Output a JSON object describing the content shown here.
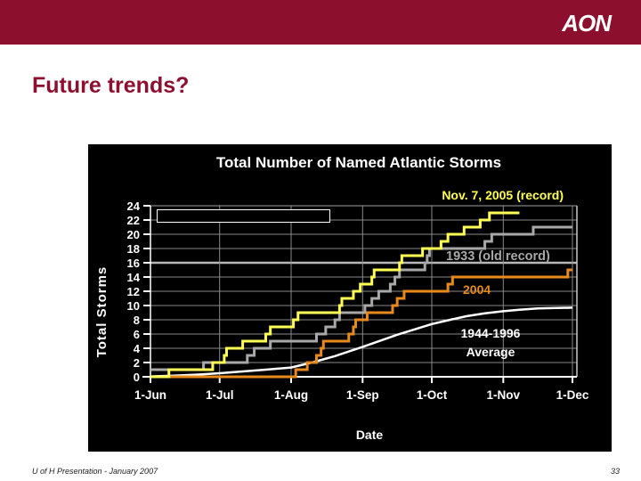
{
  "header": {
    "logo_text": "AON",
    "title": "Future trends?"
  },
  "footer": {
    "left": "U of H Presentation - January 2007",
    "page": "33"
  },
  "colors": {
    "brand_bar": "#8C0F2D",
    "title_text": "#8C1030",
    "chart_background": "#000000",
    "gridline": "#8A8A8A",
    "gridline_highlight": "#B8B8B8",
    "axis": "#FFFFFF",
    "series_2005": "#FFFF55",
    "series_1933": "#A8A8A8",
    "series_2004": "#E78A1E",
    "series_avg": "#FFFFFF"
  },
  "chart_data": {
    "type": "line",
    "title": "Total Number of Named Atlantic Storms",
    "xlabel": "Date",
    "ylabel": "Total Storms",
    "x_unit": "days_since_1_Jun",
    "xlim": [
      0,
      183
    ],
    "ylim": [
      0,
      24
    ],
    "grid": "on",
    "legend_position": "empty-box-top-left",
    "highlight_gridline_value": 16,
    "y_ticks": [
      0,
      2,
      4,
      6,
      8,
      10,
      12,
      14,
      16,
      18,
      20,
      22,
      24
    ],
    "x_ticks": [
      {
        "day": 0,
        "label": "1-Jun"
      },
      {
        "day": 30,
        "label": "1-Jul"
      },
      {
        "day": 61,
        "label": "1-Aug"
      },
      {
        "day": 92,
        "label": "1-Sep"
      },
      {
        "day": 122,
        "label": "1-Oct"
      },
      {
        "day": 153,
        "label": "1-Nov"
      },
      {
        "day": 183,
        "label": "1-Dec"
      }
    ],
    "series": [
      {
        "name": "2005 season (record, through Nov. 7)",
        "color": "#FFFF55",
        "style": "step",
        "width": 3,
        "points": [
          [
            0,
            0
          ],
          [
            8,
            1
          ],
          [
            27,
            2
          ],
          [
            32,
            3
          ],
          [
            33,
            4
          ],
          [
            40,
            5
          ],
          [
            50,
            6
          ],
          [
            52,
            7
          ],
          [
            62,
            8
          ],
          [
            64,
            9
          ],
          [
            82,
            10
          ],
          [
            83,
            11
          ],
          [
            88,
            12
          ],
          [
            91,
            13
          ],
          [
            96,
            14
          ],
          [
            97,
            15
          ],
          [
            108,
            16
          ],
          [
            109,
            17
          ],
          [
            118,
            18
          ],
          [
            126,
            19
          ],
          [
            129,
            20
          ],
          [
            136,
            21
          ],
          [
            143,
            22
          ],
          [
            147,
            23
          ],
          [
            160,
            23
          ]
        ]
      },
      {
        "name": "1933 (old record)",
        "color": "#A8A8A8",
        "style": "step",
        "width": 3,
        "points": [
          [
            0,
            1
          ],
          [
            23,
            2
          ],
          [
            42,
            3
          ],
          [
            45,
            4
          ],
          [
            52,
            5
          ],
          [
            72,
            6
          ],
          [
            76,
            7
          ],
          [
            80,
            8
          ],
          [
            82,
            9
          ],
          [
            93,
            10
          ],
          [
            96,
            11
          ],
          [
            99,
            12
          ],
          [
            104,
            13
          ],
          [
            106,
            14
          ],
          [
            108,
            15
          ],
          [
            119,
            16
          ],
          [
            120,
            17
          ],
          [
            121,
            18
          ],
          [
            145,
            19
          ],
          [
            148,
            20
          ],
          [
            166,
            21
          ],
          [
            183,
            21
          ]
        ]
      },
      {
        "name": "2004",
        "color": "#E78A1E",
        "style": "step",
        "width": 3,
        "points": [
          [
            0,
            0
          ],
          [
            63,
            1
          ],
          [
            68,
            2
          ],
          [
            72,
            3
          ],
          [
            74,
            4
          ],
          [
            75,
            5
          ],
          [
            86,
            6
          ],
          [
            88,
            7
          ],
          [
            89,
            8
          ],
          [
            94,
            9
          ],
          [
            105,
            10
          ],
          [
            107,
            11
          ],
          [
            110,
            12
          ],
          [
            129,
            13
          ],
          [
            131,
            14
          ],
          [
            181,
            15
          ],
          [
            183,
            15
          ]
        ]
      },
      {
        "name": "1944-1996 Average",
        "color": "#FFFFFF",
        "style": "smooth",
        "width": 2.5,
        "points": [
          [
            0,
            0.05
          ],
          [
            10,
            0.15
          ],
          [
            20,
            0.3
          ],
          [
            30,
            0.5
          ],
          [
            40,
            0.75
          ],
          [
            50,
            1.0
          ],
          [
            61,
            1.3
          ],
          [
            70,
            2.0
          ],
          [
            80,
            2.9
          ],
          [
            92,
            4.2
          ],
          [
            100,
            5.1
          ],
          [
            107,
            5.9
          ],
          [
            115,
            6.7
          ],
          [
            122,
            7.4
          ],
          [
            130,
            8.0
          ],
          [
            137,
            8.5
          ],
          [
            145,
            8.9
          ],
          [
            153,
            9.2
          ],
          [
            160,
            9.4
          ],
          [
            168,
            9.6
          ],
          [
            183,
            9.7
          ]
        ]
      }
    ],
    "annotations": [
      {
        "text": "Nov. 7, 2005 (record)",
        "color": "#FFFF55"
      },
      {
        "text": "1933 (old record)",
        "color": "#A8A8A8"
      },
      {
        "text": "2004",
        "color": "#E78A1E"
      },
      {
        "text": "1944-1996",
        "color": "#FFFFFF"
      },
      {
        "text": "Average",
        "color": "#FFFFFF"
      }
    ]
  }
}
